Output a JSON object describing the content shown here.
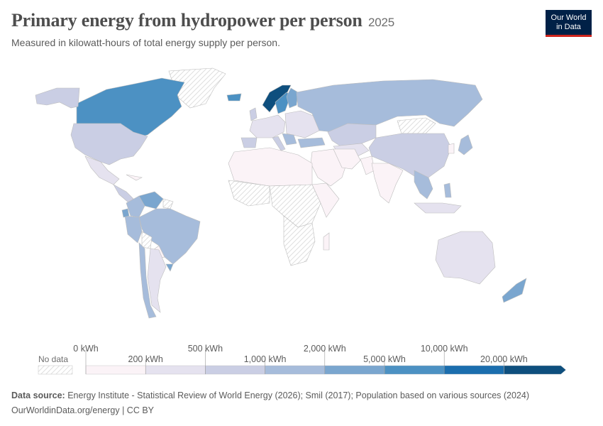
{
  "header": {
    "title": "Primary energy from hydropower per person",
    "year": "2025",
    "subtitle": "Measured in kilowatt-hours of total energy supply per person."
  },
  "logo": {
    "line1": "Our World",
    "line2": "in Data"
  },
  "legend": {
    "no_data_label": "No data",
    "bins": [
      {
        "label": "0 kWh",
        "color": "#fbf3f7"
      },
      {
        "label": "200 kWh",
        "color": "#e5e2ef"
      },
      {
        "label": "500 kWh",
        "color": "#cacee4"
      },
      {
        "label": "1,000 kWh",
        "color": "#a6bcdb"
      },
      {
        "label": "2,000 kWh",
        "color": "#7aa6cf"
      },
      {
        "label": "5,000 kWh",
        "color": "#4c91c3"
      },
      {
        "label": "10,000 kWh",
        "color": "#1b6eae"
      },
      {
        "label": "20,000 kWh",
        "color": "#0e4f7e"
      }
    ]
  },
  "map": {
    "colors": {
      "none": "#fbf3f7",
      "low": "#e5e2ef",
      "mid": "#cacee4",
      "light_blue": "#a6bcdb",
      "blue": "#7aa6cf",
      "strong": "#4c91c3",
      "deep": "#1b6eae",
      "darkest": "#0e4f7e",
      "no_data": "#f2f2f2",
      "border": "#d2d2d2"
    }
  },
  "footer": {
    "source_label": "Data source:",
    "source_text": "Energy Institute - Statistical Review of World Energy (2026); Smil (2017); Population based on various sources (2024)",
    "url": "OurWorldinData.org/energy | CC BY"
  }
}
